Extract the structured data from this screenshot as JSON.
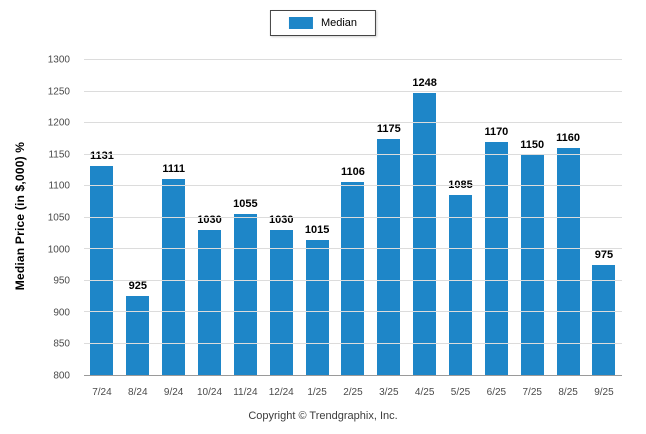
{
  "legend": {
    "label": "Median",
    "swatch_color": "#1e86c8"
  },
  "footer": {
    "text": "Copyright © Trendgraphix, Inc."
  },
  "chart_data": {
    "type": "bar",
    "title": "",
    "xlabel": "",
    "ylabel": "Median Price (in $,000) %",
    "categories": [
      "7/24",
      "8/24",
      "9/24",
      "10/24",
      "11/24",
      "12/24",
      "1/25",
      "2/25",
      "3/25",
      "4/25",
      "5/25",
      "6/25",
      "7/25",
      "8/25",
      "9/25"
    ],
    "values": [
      1131,
      925,
      1111,
      1030,
      1055,
      1030,
      1015,
      1106,
      1175,
      1248,
      1085,
      1170,
      1150,
      1160,
      975
    ],
    "ylim": [
      800,
      1300
    ],
    "ytick_step": 50,
    "bar_color": "#1e86c8",
    "grid": true,
    "legend_position": "top"
  }
}
